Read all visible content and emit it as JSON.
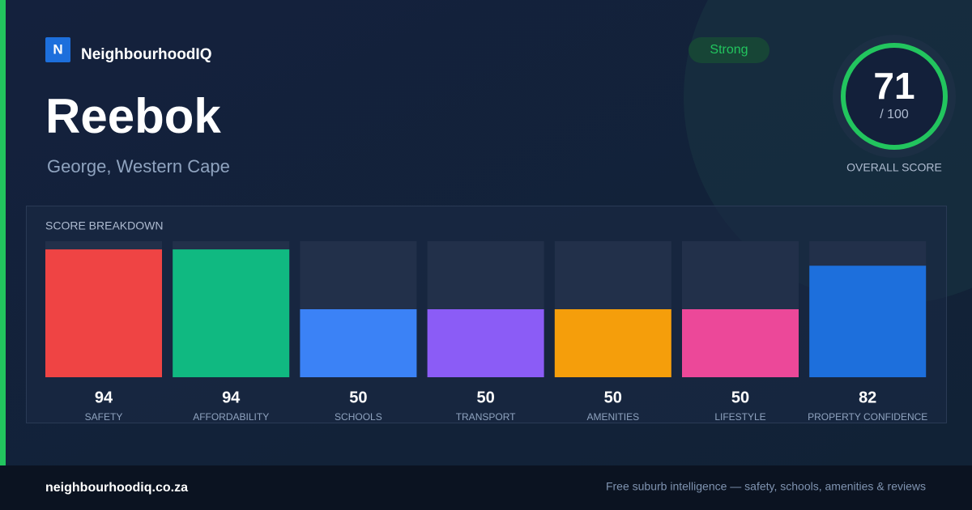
{
  "brand": {
    "logo": "N",
    "name": "NeighbourhoodIQ"
  },
  "suburb": "Reebok",
  "location": "George, Western Cape",
  "badge": "Strong",
  "overall": {
    "score": 71,
    "max": {
      "value": 100,
      "label": "/ 100"
    },
    "label": "OVERALL SCORE"
  },
  "breakdown": {
    "title": "SCORE BREAKDOWN",
    "items": [
      {
        "label": "SAFETY",
        "value": 94,
        "color": "#ef4444"
      },
      {
        "label": "AFFORDABILITY",
        "value": 94,
        "color": "#10b981"
      },
      {
        "label": "SCHOOLS",
        "value": 50,
        "color": "#3b82f6"
      },
      {
        "label": "TRANSPORT",
        "value": 50,
        "color": "#8b5cf6"
      },
      {
        "label": "AMENITIES",
        "value": 50,
        "color": "#f59e0b"
      },
      {
        "label": "LIFESTYLE",
        "value": 50,
        "color": "#ec4899"
      },
      {
        "label": "PROPERTY CONFIDENCE",
        "value": 82,
        "color": "#1d6fdc"
      }
    ]
  },
  "footer": {
    "site": "neighbourhoodiq.co.za",
    "tagline": "Free suburb intelligence — safety, schools, amenities & reviews"
  }
}
